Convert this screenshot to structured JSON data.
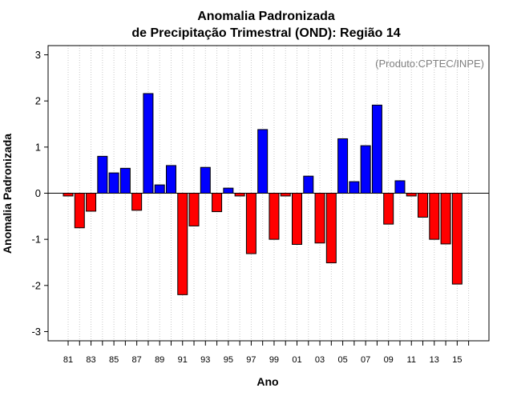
{
  "chart_data": {
    "type": "bar",
    "title": "Anomalia Padronizada",
    "subtitle": "de Precipitação Trimestral (OND): Região 14",
    "xlabel": "Ano",
    "ylabel": "Anomalia Padronizada",
    "annotation": "(Produto:CPTEC/INPE)",
    "ylim": [
      -3.2,
      3.2
    ],
    "yticks": [
      -3,
      -2,
      -1,
      0,
      1,
      2,
      3
    ],
    "ytick_labels": [
      "-3",
      "-2",
      "-1",
      "0",
      "1",
      "2",
      "3"
    ],
    "xtick_labels": [
      "81",
      "83",
      "85",
      "87",
      "89",
      "91",
      "93",
      "95",
      "97",
      "99",
      "01",
      "03",
      "05",
      "07",
      "09",
      "11",
      "13",
      "15"
    ],
    "categories": [
      "1981",
      "1982",
      "1983",
      "1984",
      "1985",
      "1986",
      "1987",
      "1988",
      "1989",
      "1990",
      "1991",
      "1992",
      "1993",
      "1994",
      "1995",
      "1996",
      "1997",
      "1998",
      "1999",
      "2000",
      "2001",
      "2002",
      "2003",
      "2004",
      "2005",
      "2006",
      "2007",
      "2008",
      "2009",
      "2010",
      "2011",
      "2012",
      "2013",
      "2014",
      "2015"
    ],
    "values": [
      -0.06,
      -0.75,
      -0.39,
      0.8,
      0.44,
      0.54,
      -0.37,
      2.16,
      0.18,
      0.6,
      -2.2,
      -0.71,
      0.56,
      -0.4,
      0.11,
      -0.06,
      -1.31,
      1.38,
      -1.0,
      -0.06,
      -1.11,
      0.37,
      -1.08,
      -1.51,
      1.18,
      0.25,
      1.03,
      1.91,
      -0.67,
      0.27,
      -0.06,
      -0.52,
      -1.0,
      -1.1,
      -1.97
    ],
    "positive_color": "#0000ff",
    "negative_color": "#ff0000",
    "grid": true
  }
}
